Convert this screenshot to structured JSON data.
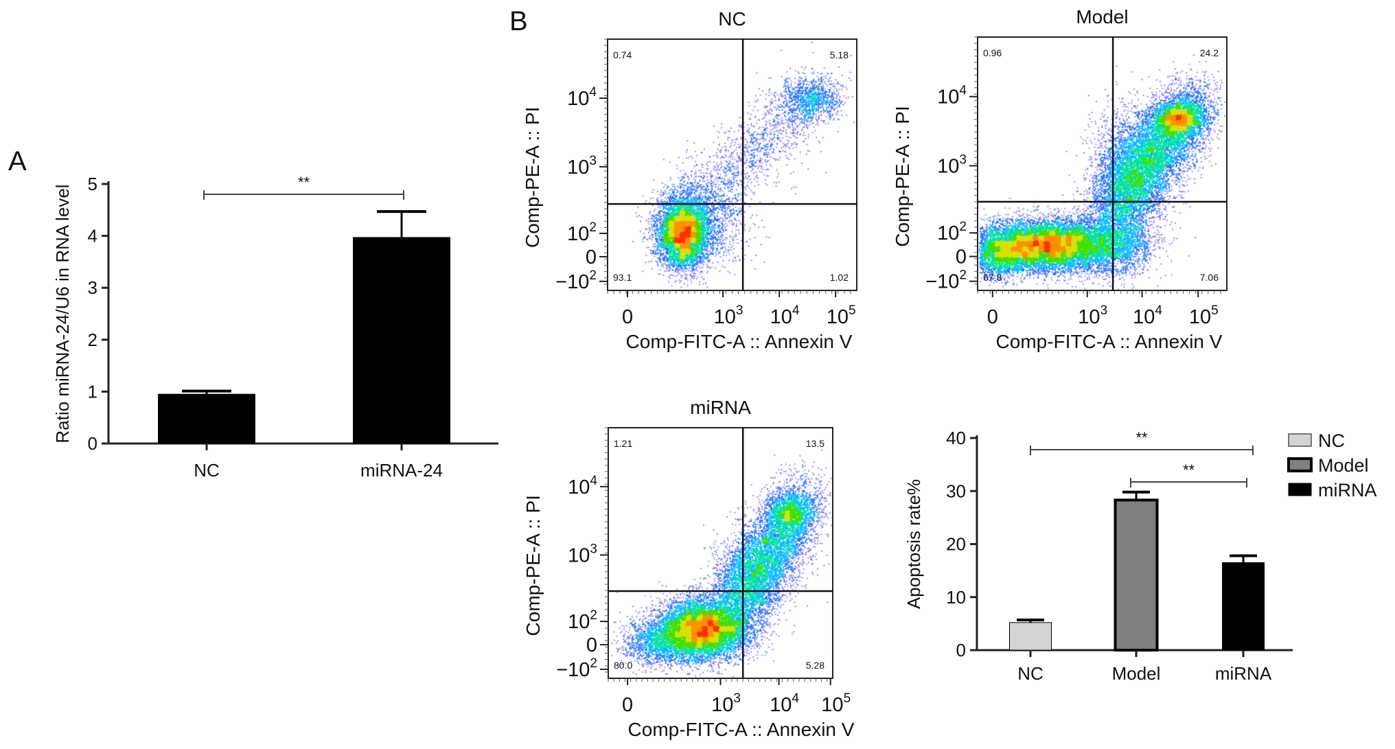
{
  "panel_labels": {
    "a": "A",
    "b": "B"
  },
  "chart_data": [
    {
      "id": "A",
      "type": "bar",
      "title": "",
      "categories": [
        "NC",
        "miRNA-24"
      ],
      "values": [
        0.95,
        3.97
      ],
      "error_upper": [
        1.01,
        4.47
      ],
      "colors": [
        "#000000",
        "#000000"
      ],
      "xlabel": "",
      "ylabel": "Ratio miRNA-24/U6 in RNA level",
      "ylim": [
        0,
        5
      ],
      "yticks": [
        "0",
        "1",
        "2",
        "3",
        "4",
        "5"
      ],
      "grid": false,
      "significance": [
        {
          "from": "NC",
          "to": "miRNA-24",
          "label": "**"
        }
      ]
    },
    {
      "id": "B-NC",
      "type": "scatter",
      "subtype": "flow-cytometry-quadrant",
      "title": "NC",
      "xlabel": "Comp-FITC-A :: Annexin V",
      "ylabel": "Comp-PE-A :: PI",
      "xticks": [
        {
          "base": "0",
          "exp": ""
        },
        {
          "base": "10",
          "exp": "3"
        },
        {
          "base": "10",
          "exp": "4"
        },
        {
          "base": "10",
          "exp": "5"
        }
      ],
      "yticks": [
        {
          "base": "10",
          "exp": "4"
        },
        {
          "base": "10",
          "exp": "3"
        },
        {
          "base": "10",
          "exp": "2"
        },
        {
          "base": "0",
          "exp": ""
        },
        {
          "base": "−10",
          "exp": "2"
        }
      ],
      "quadrants": {
        "upper_left": "0.74",
        "upper_right": "5.18",
        "lower_left": "93.1",
        "lower_right": "1.02"
      }
    },
    {
      "id": "B-Model",
      "type": "scatter",
      "subtype": "flow-cytometry-quadrant",
      "title": "Model",
      "xlabel": "Comp-FITC-A :: Annexin V",
      "ylabel": "Comp-PE-A :: PI",
      "xticks": [
        {
          "base": "0",
          "exp": ""
        },
        {
          "base": "10",
          "exp": "3"
        },
        {
          "base": "10",
          "exp": "4"
        },
        {
          "base": "10",
          "exp": "5"
        }
      ],
      "yticks": [
        {
          "base": "10",
          "exp": "4"
        },
        {
          "base": "10",
          "exp": "3"
        },
        {
          "base": "10",
          "exp": "2"
        },
        {
          "base": "0",
          "exp": ""
        },
        {
          "base": "−10",
          "exp": "2"
        }
      ],
      "quadrants": {
        "upper_left": "0.96",
        "upper_right": "24.2",
        "lower_left": "67.8",
        "lower_right": "7.06"
      }
    },
    {
      "id": "B-miRNA",
      "type": "scatter",
      "subtype": "flow-cytometry-quadrant",
      "title": "miRNA",
      "xlabel": "Comp-FITC-A :: Annexin V",
      "ylabel": "Comp-PE-A :: PI",
      "xticks": [
        {
          "base": "0",
          "exp": ""
        },
        {
          "base": "10",
          "exp": "3"
        },
        {
          "base": "10",
          "exp": "4"
        },
        {
          "base": "10",
          "exp": "5"
        }
      ],
      "yticks": [
        {
          "base": "10",
          "exp": "4"
        },
        {
          "base": "10",
          "exp": "3"
        },
        {
          "base": "10",
          "exp": "2"
        },
        {
          "base": "0",
          "exp": ""
        },
        {
          "base": "−10",
          "exp": "2"
        }
      ],
      "quadrants": {
        "upper_left": "1.21",
        "upper_right": "13.5",
        "lower_left": "80.0",
        "lower_right": "5.28"
      }
    },
    {
      "id": "B-bar",
      "type": "bar",
      "title": "",
      "categories": [
        "NC",
        "Model",
        "miRNA"
      ],
      "values": [
        5.2,
        28.3,
        16.5
      ],
      "error_upper": [
        5.7,
        29.8,
        17.8
      ],
      "colors": [
        "#d4d4d4",
        "#808080",
        "#000000"
      ],
      "xlabel": "",
      "ylabel": "Apoptosis rate%",
      "ylim": [
        0,
        40
      ],
      "yticks": [
        "0",
        "10",
        "20",
        "30",
        "40"
      ],
      "grid": false,
      "legend": [
        "NC",
        "Model",
        "miRNA"
      ],
      "legend_position": "top-right",
      "significance": [
        {
          "from": "NC",
          "to": "miRNA",
          "label": "**"
        },
        {
          "from": "Model",
          "to": "miRNA",
          "label": "**"
        }
      ]
    }
  ]
}
